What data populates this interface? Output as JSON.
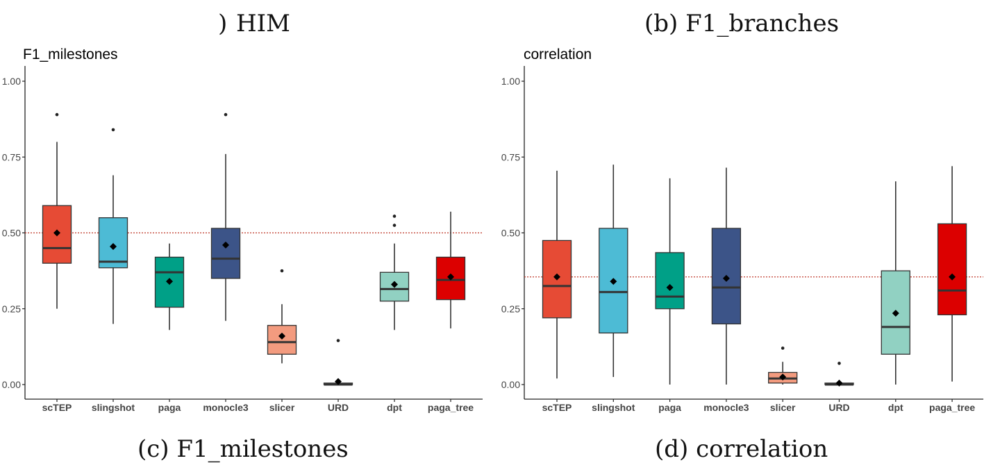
{
  "captions": {
    "top_left": "HIM",
    "top_left_prefix": ")",
    "top_right": "(b) F1_branches",
    "bottom_left": "(c) F1_milestones",
    "bottom_right": "(d) correlation"
  },
  "colors": {
    "scTEP": "#e64b35",
    "slingshot": "#4dbbd5",
    "paga": "#00a087",
    "monocle3": "#3c5488",
    "slicer": "#f39b7f",
    "URD": "#8491b4",
    "dpt": "#91d1c2",
    "paga_tree": "#dc0000",
    "reference_line": "#c0392b"
  },
  "chart_data": [
    {
      "type": "boxplot",
      "title": "F1_milestones",
      "xlabel": "",
      "ylabel": "",
      "ylim": [
        0,
        1.05
      ],
      "yticks": [
        "0.00",
        "0.25",
        "0.50",
        "0.75",
        "1.00"
      ],
      "categories": [
        "scTEP",
        "slingshot",
        "paga",
        "monocle3",
        "slicer",
        "URD",
        "dpt",
        "paga_tree"
      ],
      "reference_line": 0.5,
      "boxes": [
        {
          "name": "scTEP",
          "low": 0.25,
          "q1": 0.4,
          "median": 0.45,
          "q3": 0.59,
          "high": 0.8,
          "mean": 0.5,
          "outliers": [
            0.89
          ]
        },
        {
          "name": "slingshot",
          "low": 0.2,
          "q1": 0.385,
          "median": 0.405,
          "q3": 0.55,
          "high": 0.69,
          "mean": 0.455,
          "outliers": [
            0.84
          ]
        },
        {
          "name": "paga",
          "low": 0.18,
          "q1": 0.255,
          "median": 0.37,
          "q3": 0.42,
          "high": 0.465,
          "mean": 0.34,
          "outliers": []
        },
        {
          "name": "monocle3",
          "low": 0.21,
          "q1": 0.35,
          "median": 0.415,
          "q3": 0.515,
          "high": 0.76,
          "mean": 0.46,
          "outliers": [
            0.89
          ]
        },
        {
          "name": "slicer",
          "low": 0.07,
          "q1": 0.1,
          "median": 0.14,
          "q3": 0.195,
          "high": 0.265,
          "mean": 0.16,
          "outliers": [
            0.375
          ]
        },
        {
          "name": "URD",
          "low": 0.0,
          "q1": 0.0,
          "median": 0.0,
          "q3": 0.005,
          "high": 0.01,
          "mean": 0.01,
          "outliers": [
            0.145
          ]
        },
        {
          "name": "dpt",
          "low": 0.18,
          "q1": 0.275,
          "median": 0.315,
          "q3": 0.37,
          "high": 0.465,
          "mean": 0.33,
          "outliers": [
            0.525,
            0.555
          ]
        },
        {
          "name": "paga_tree",
          "low": 0.185,
          "q1": 0.28,
          "median": 0.345,
          "q3": 0.42,
          "high": 0.57,
          "mean": 0.355,
          "outliers": []
        }
      ]
    },
    {
      "type": "boxplot",
      "title": "correlation",
      "xlabel": "",
      "ylabel": "",
      "ylim": [
        0,
        1.05
      ],
      "yticks": [
        "0.00",
        "0.25",
        "0.50",
        "0.75",
        "1.00"
      ],
      "categories": [
        "scTEP",
        "slingshot",
        "paga",
        "monocle3",
        "slicer",
        "URD",
        "dpt",
        "paga_tree"
      ],
      "reference_line": 0.355,
      "boxes": [
        {
          "name": "scTEP",
          "low": 0.02,
          "q1": 0.22,
          "median": 0.325,
          "q3": 0.475,
          "high": 0.705,
          "mean": 0.355,
          "outliers": []
        },
        {
          "name": "slingshot",
          "low": 0.025,
          "q1": 0.17,
          "median": 0.305,
          "q3": 0.515,
          "high": 0.725,
          "mean": 0.34,
          "outliers": []
        },
        {
          "name": "paga",
          "low": 0.0,
          "q1": 0.25,
          "median": 0.29,
          "q3": 0.435,
          "high": 0.68,
          "mean": 0.32,
          "outliers": []
        },
        {
          "name": "monocle3",
          "low": 0.0,
          "q1": 0.2,
          "median": 0.32,
          "q3": 0.515,
          "high": 0.715,
          "mean": 0.35,
          "outliers": []
        },
        {
          "name": "slicer",
          "low": 0.0,
          "q1": 0.005,
          "median": 0.02,
          "q3": 0.04,
          "high": 0.075,
          "mean": 0.025,
          "outliers": [
            0.12
          ]
        },
        {
          "name": "URD",
          "low": 0.0,
          "q1": 0.0,
          "median": 0.0,
          "q3": 0.005,
          "high": 0.005,
          "mean": 0.005,
          "outliers": [
            0.07
          ]
        },
        {
          "name": "dpt",
          "low": 0.0,
          "q1": 0.1,
          "median": 0.19,
          "q3": 0.375,
          "high": 0.67,
          "mean": 0.235,
          "outliers": []
        },
        {
          "name": "paga_tree",
          "low": 0.01,
          "q1": 0.23,
          "median": 0.31,
          "q3": 0.53,
          "high": 0.72,
          "mean": 0.355,
          "outliers": []
        }
      ]
    }
  ]
}
